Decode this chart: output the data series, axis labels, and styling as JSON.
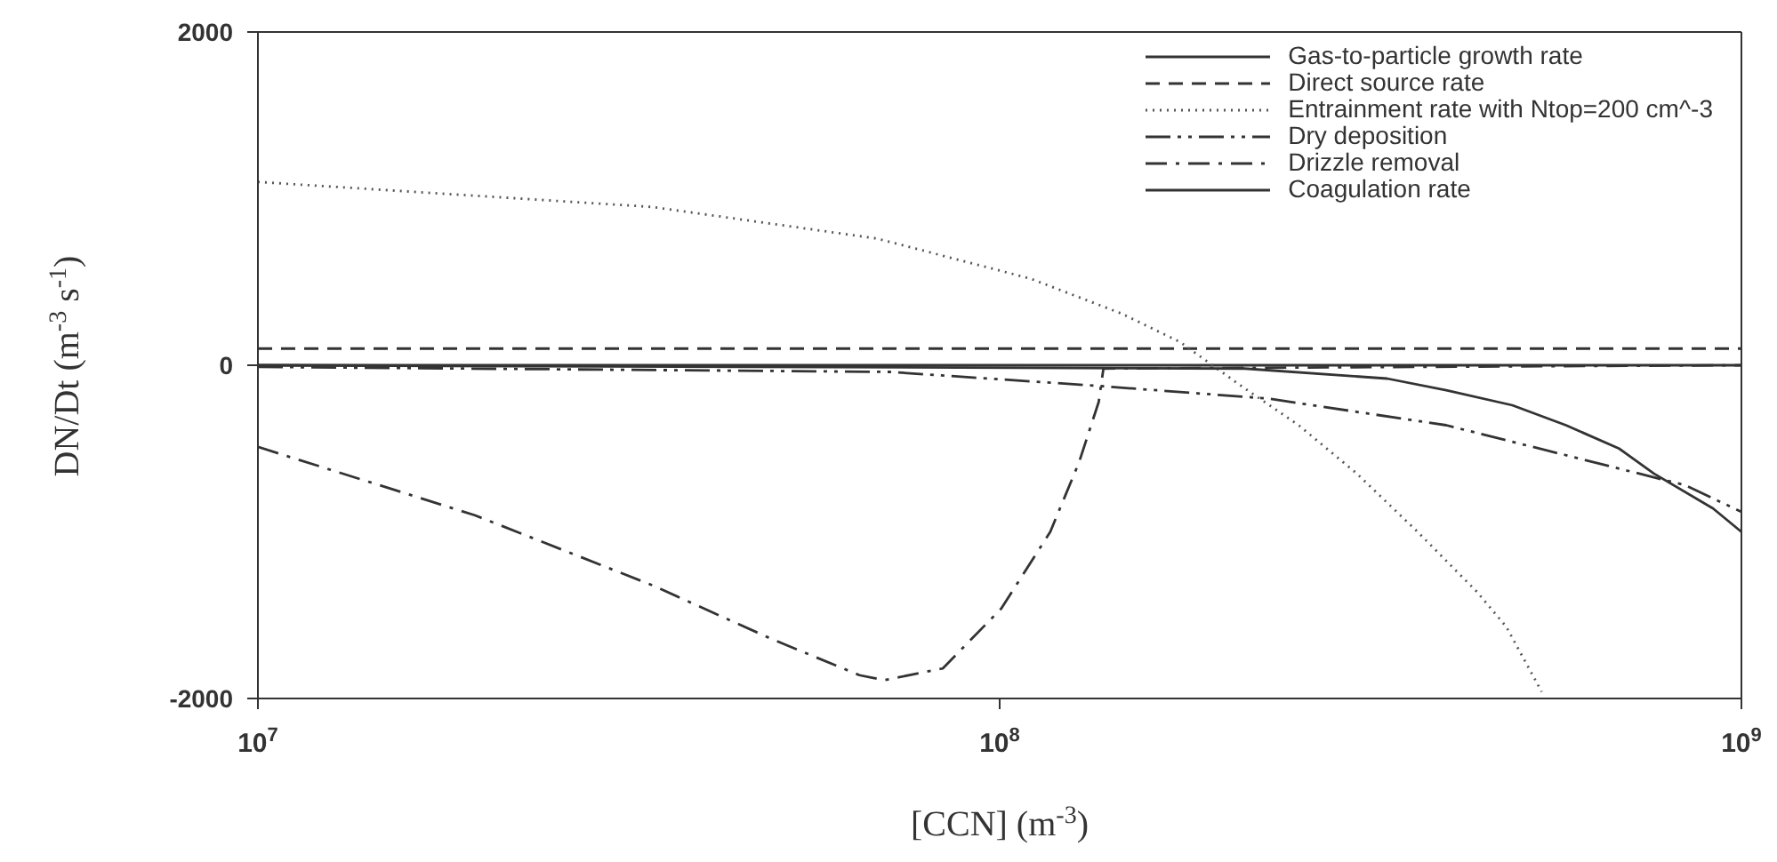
{
  "chart_data": {
    "type": "line",
    "xlabel": "[CCN] (m$^{-3}$)",
    "ylabel": "DN/Dt (m$^{-3}$ s$^{-1}$)",
    "log": "x",
    "xlim": [
      10000000,
      1000000000
    ],
    "xticks": [
      {
        "value": 10000000,
        "label": "10$^{7}$"
      },
      {
        "value": 100000000,
        "label": "10$^{8}$"
      },
      {
        "value": 1000000000,
        "label": "10$^{9}$"
      }
    ],
    "ylim": [
      -2000,
      2000
    ],
    "yticks": [
      -2000,
      0,
      2000
    ],
    "grid": false,
    "legend": "top right",
    "marker": "none",
    "series": [
      {
        "name": "Gas-to-particle growth rate",
        "color": "#333333",
        "line_style": "solid",
        "x": [
          10000000,
          1000000000
        ],
        "values": [
          0,
          0
        ]
      },
      {
        "name": "Direct source rate",
        "color": "#333333",
        "line_style": "dashed",
        "x": [
          10000000,
          1000000000
        ],
        "values": [
          100,
          100
        ]
      },
      {
        "name": "Entrainment rate with Ntop=200 cm^-3",
        "color": "#555555",
        "line_style": "dotted",
        "x": [
          10000000,
          34000000,
          68400000,
          110000000,
          146000000,
          175000000,
          211000000,
          253000000,
          303000000,
          366000000,
          440000000,
          482000000,
          538000000
        ],
        "values": [
          1100,
          950,
          760,
          520,
          310,
          140,
          -120,
          -360,
          -650,
          -1000,
          -1360,
          -1570,
          -1960
        ]
      },
      {
        "name": "Dry deposition",
        "color": "#333333",
        "line_style": "dashdotdot",
        "x": [
          10000000,
          71000000,
          132000000,
          230000000,
          400000000,
          580000000,
          840000000,
          1000000000
        ],
        "values": [
          -10,
          -40,
          -120,
          -200,
          -360,
          -540,
          -720,
          -880
        ]
      },
      {
        "name": "Drizzle removal",
        "color": "#333333",
        "line_style": "dashdot",
        "x": [
          10000000,
          19600000,
          34000000,
          49100000,
          64700000,
          69800000,
          83800000,
          100500000,
          117000000,
          128000000,
          136000000,
          138000000,
          1000000000
        ],
        "values": [
          -490,
          -900,
          -1320,
          -1640,
          -1860,
          -1890,
          -1820,
          -1460,
          -1000,
          -580,
          -220,
          -20,
          0
        ]
      },
      {
        "name": "Coagulation rate",
        "color": "#333333",
        "line_style": "solid",
        "x": [
          10000000,
          214000000,
          333000000,
          400000000,
          491000000,
          580000000,
          684000000,
          762000000,
          916000000,
          1000000000
        ],
        "values": [
          0,
          -20,
          -80,
          -150,
          -240,
          -360,
          -500,
          -650,
          -860,
          -1000
        ]
      }
    ]
  }
}
